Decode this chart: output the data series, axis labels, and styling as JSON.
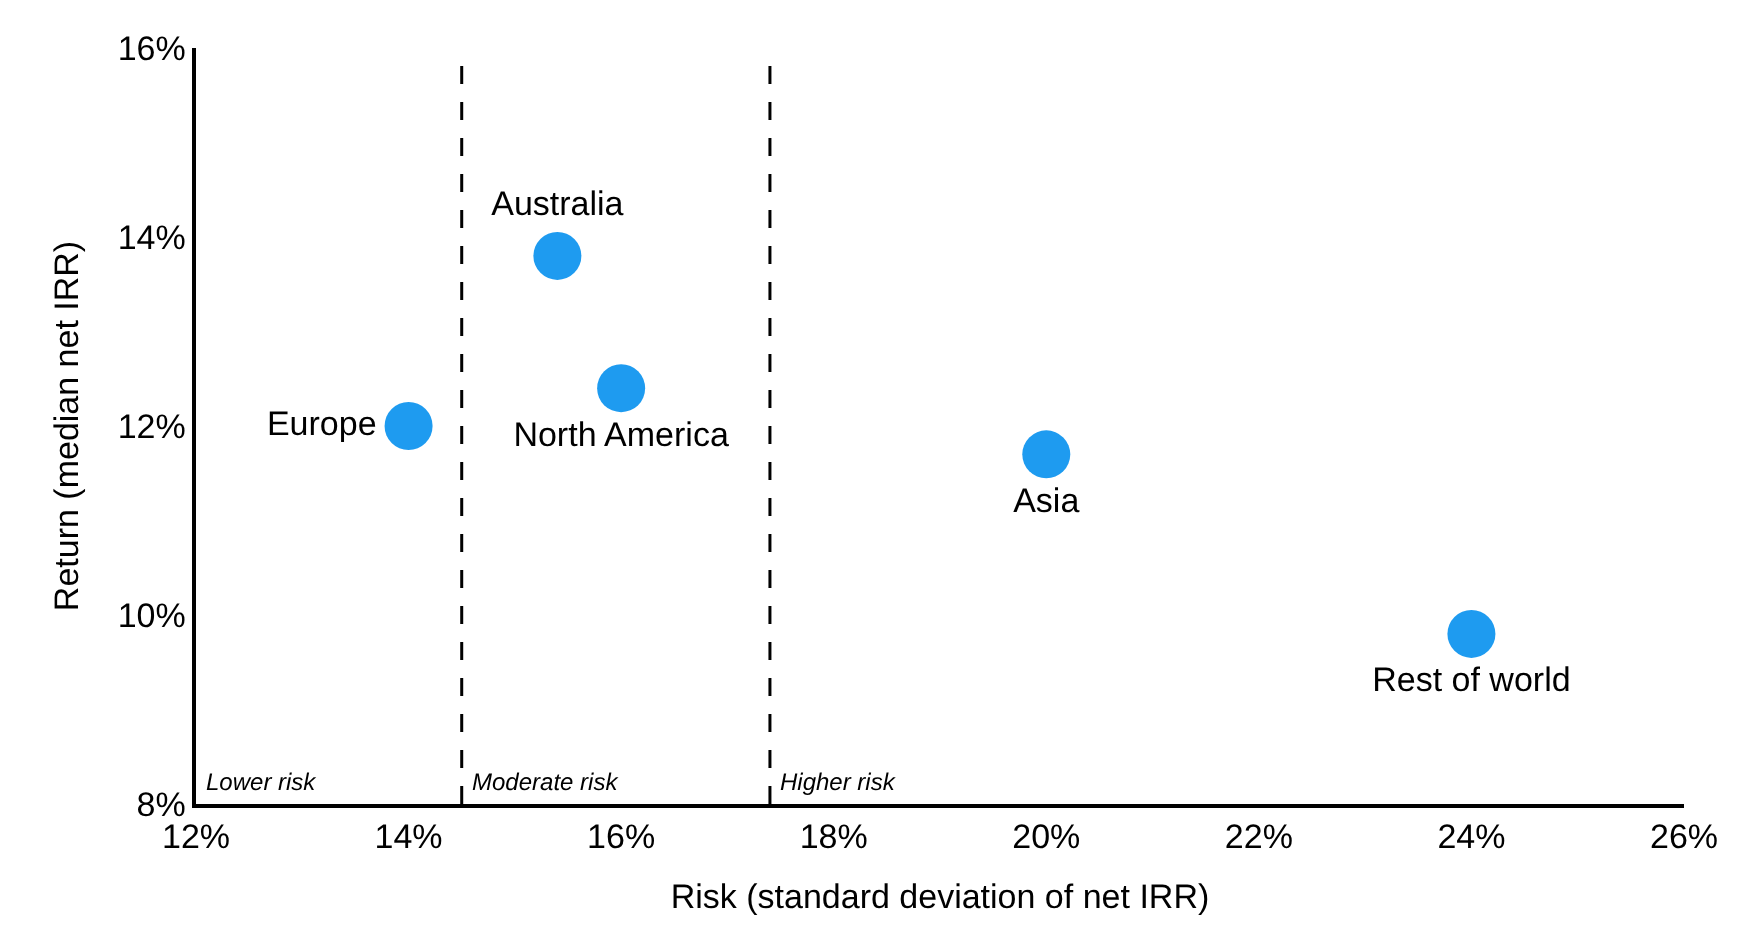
{
  "chart_data": {
    "type": "scatter",
    "xlabel": "Risk (standard deviation of net IRR)",
    "ylabel": "Return (median net IRR)",
    "series": [
      {
        "name": "Europe",
        "color": "#1e9bf0",
        "x": [
          14
        ],
        "values": [
          12
        ]
      },
      {
        "name": "Australia",
        "color": "#1e9bf0",
        "x": [
          15.4
        ],
        "values": [
          13.8
        ]
      },
      {
        "name": "North America",
        "color": "#1e9bf0",
        "x": [
          16
        ],
        "values": [
          12.4
        ]
      },
      {
        "name": "Asia",
        "color": "#1e9bf0",
        "x": [
          20
        ],
        "values": [
          11.7
        ]
      },
      {
        "name": "Rest of world",
        "color": "#1e9bf0",
        "x": [
          24
        ],
        "values": [
          9.8
        ]
      }
    ],
    "xlim": [
      12,
      26
    ],
    "xticks": [
      {
        "value": 12,
        "label": "12%"
      },
      {
        "value": 14,
        "label": "14%"
      },
      {
        "value": 16,
        "label": "16%"
      },
      {
        "value": 18,
        "label": "18%"
      },
      {
        "value": 20,
        "label": "20%"
      },
      {
        "value": 22,
        "label": "22%"
      },
      {
        "value": 24,
        "label": "24%"
      },
      {
        "value": 26,
        "label": "26%"
      }
    ],
    "ylim": [
      8,
      16
    ],
    "yticks": [
      {
        "value": 8,
        "label": "8%"
      },
      {
        "value": 10,
        "label": "10%"
      },
      {
        "value": 12,
        "label": "12%"
      },
      {
        "value": 14,
        "label": "14%"
      },
      {
        "value": 16,
        "label": "16%"
      }
    ],
    "ref_lines": [
      {
        "axis": "x",
        "value": 14.5,
        "color": "#000000",
        "line_style": "dashed"
      },
      {
        "axis": "x",
        "value": 17.4,
        "color": "#000000",
        "line_style": "dashed"
      }
    ],
    "annotations": [
      "Lower risk",
      "Moderate risk",
      "Higher risk"
    ],
    "grid": false,
    "legend": false,
    "marker": "circle"
  }
}
